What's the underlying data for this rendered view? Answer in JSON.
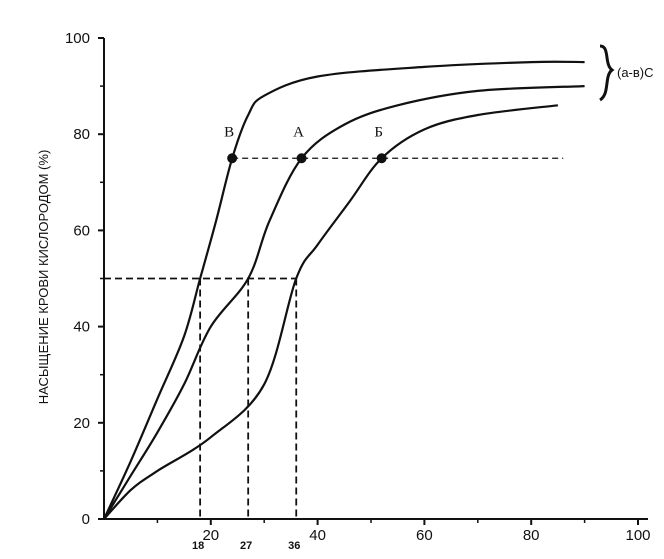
{
  "chart_data": {
    "type": "line",
    "title": "",
    "ylabel": "НАСЫЩЕНИЕ КРОВИ КИСЛОРОДОМ (%)",
    "xlabel": "",
    "xlim": [
      0,
      100
    ],
    "ylim": [
      0,
      100
    ],
    "x_ticks": [
      20,
      40,
      60,
      80,
      100
    ],
    "y_ticks": [
      0,
      20,
      40,
      60,
      80,
      100
    ],
    "series": [
      {
        "name": "В",
        "points": [
          [
            0,
            0
          ],
          [
            5,
            12
          ],
          [
            10,
            25
          ],
          [
            15,
            38
          ],
          [
            18,
            50
          ],
          [
            21,
            62
          ],
          [
            24,
            75
          ],
          [
            27,
            84
          ],
          [
            30,
            88
          ],
          [
            40,
            92
          ],
          [
            60,
            94
          ],
          [
            80,
            95
          ],
          [
            90,
            95
          ]
        ]
      },
      {
        "name": "А",
        "points": [
          [
            0,
            0
          ],
          [
            5,
            9
          ],
          [
            10,
            18
          ],
          [
            15,
            28
          ],
          [
            20,
            40
          ],
          [
            27,
            50
          ],
          [
            31,
            62
          ],
          [
            37,
            75
          ],
          [
            45,
            82
          ],
          [
            55,
            86
          ],
          [
            70,
            89
          ],
          [
            90,
            90
          ]
        ]
      },
      {
        "name": "Б",
        "points": [
          [
            0,
            0
          ],
          [
            5,
            6
          ],
          [
            10,
            10
          ],
          [
            20,
            17
          ],
          [
            30,
            28
          ],
          [
            36,
            50
          ],
          [
            40,
            57
          ],
          [
            46,
            66
          ],
          [
            52,
            75
          ],
          [
            60,
            81
          ],
          [
            70,
            84
          ],
          [
            85,
            86
          ]
        ]
      }
    ],
    "markers": [
      {
        "series": "В",
        "x": 24,
        "y": 75
      },
      {
        "series": "А",
        "x": 37,
        "y": 75
      },
      {
        "series": "Б",
        "x": 52,
        "y": 75
      }
    ],
    "reference_lines": {
      "y75": {
        "y": 75,
        "x_from": 24,
        "x_to": 86
      },
      "y50": {
        "y": 50,
        "x_from": 0,
        "x_to": 36
      }
    },
    "x_marks": [
      {
        "x": 18,
        "label": "18"
      },
      {
        "x": 27,
        "label": "27"
      },
      {
        "x": 36,
        "label": "36"
      }
    ],
    "annotations": {
      "brace_label": "(а-в)С"
    }
  }
}
